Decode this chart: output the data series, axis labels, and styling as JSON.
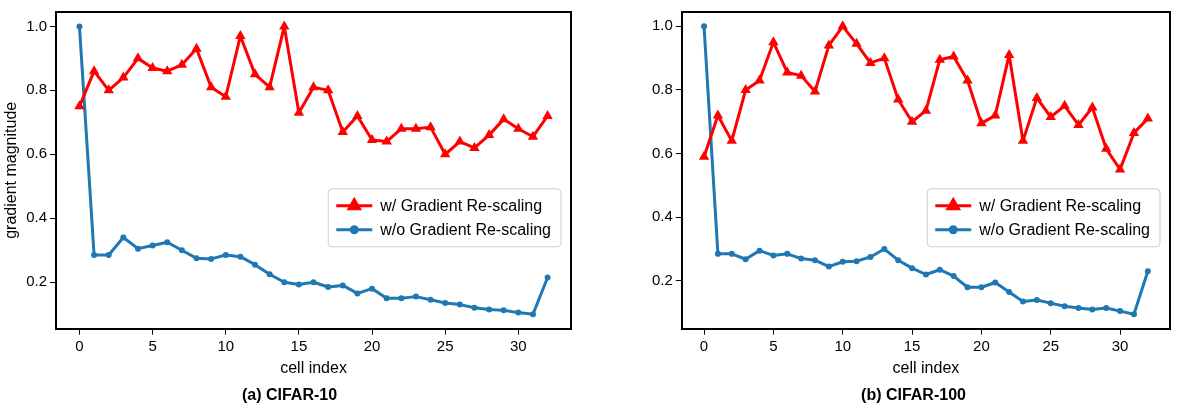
{
  "chart_data": [
    {
      "type": "line",
      "title": "(a) CIFAR-10",
      "xlabel": "cell index",
      "ylabel": "gradient magnitude",
      "x": [
        0,
        1,
        2,
        3,
        4,
        5,
        6,
        7,
        8,
        9,
        10,
        11,
        12,
        13,
        14,
        15,
        16,
        17,
        18,
        19,
        20,
        21,
        22,
        23,
        24,
        25,
        26,
        27,
        28,
        29,
        30,
        31,
        32
      ],
      "xlim": [
        -1.6,
        33.6
      ],
      "xticks": [
        0,
        5,
        10,
        15,
        20,
        25,
        30
      ],
      "ylim": [
        0.055,
        1.045
      ],
      "yticks": [
        0.2,
        0.4,
        0.6,
        0.8,
        {
          "value": 1.0,
          "label": "1.0"
        }
      ],
      "grid": false,
      "legend": "center right",
      "line_style": "solid",
      "series": [
        {
          "name": "w/ Gradient Re-scaling",
          "color": "#ff0000",
          "marker": "triangle",
          "values": [
            0.75,
            0.86,
            0.8,
            0.84,
            0.9,
            0.87,
            0.86,
            0.88,
            0.93,
            0.81,
            0.78,
            0.97,
            0.85,
            0.81,
            1.0,
            0.73,
            0.81,
            0.8,
            0.67,
            0.72,
            0.645,
            0.64,
            0.68,
            0.68,
            0.685,
            0.6,
            0.64,
            0.62,
            0.66,
            0.71,
            0.68,
            0.655,
            0.72
          ]
        },
        {
          "name": "w/o Gradient Re-scaling",
          "color": "#1f77b4",
          "marker": "circle",
          "values": [
            1.0,
            0.285,
            0.285,
            0.34,
            0.305,
            0.315,
            0.325,
            0.3,
            0.275,
            0.273,
            0.285,
            0.28,
            0.255,
            0.225,
            0.2,
            0.193,
            0.2,
            0.185,
            0.19,
            0.165,
            0.18,
            0.15,
            0.15,
            0.155,
            0.145,
            0.135,
            0.13,
            0.12,
            0.115,
            0.112,
            0.105,
            0.1,
            0.215
          ]
        }
      ]
    },
    {
      "type": "line",
      "title": "(b) CIFAR-100",
      "xlabel": "cell index",
      "x": [
        0,
        1,
        2,
        3,
        4,
        5,
        6,
        7,
        8,
        9,
        10,
        11,
        12,
        13,
        14,
        15,
        16,
        17,
        18,
        19,
        20,
        21,
        22,
        23,
        24,
        25,
        26,
        27,
        28,
        29,
        30,
        31,
        32
      ],
      "xlim": [
        -1.6,
        33.6
      ],
      "xticks": [
        0,
        5,
        10,
        15,
        20,
        25,
        30
      ],
      "ylim": [
        0.05,
        1.045
      ],
      "yticks": [
        0.2,
        0.4,
        0.6,
        0.8,
        {
          "value": 1.0,
          "label": "1.0"
        }
      ],
      "grid": false,
      "legend": "center right",
      "line_style": "solid",
      "series": [
        {
          "name": "w/ Gradient Re-scaling",
          "color": "#ff0000",
          "marker": "triangle",
          "values": [
            0.59,
            0.72,
            0.64,
            0.8,
            0.83,
            0.95,
            0.855,
            0.845,
            0.795,
            0.94,
            1.0,
            0.945,
            0.885,
            0.9,
            0.77,
            0.7,
            0.735,
            0.895,
            0.905,
            0.83,
            0.695,
            0.72,
            0.91,
            0.64,
            0.775,
            0.715,
            0.75,
            0.69,
            0.745,
            0.615,
            0.55,
            0.665,
            0.71
          ]
        },
        {
          "name": "w/o Gradient Re-scaling",
          "color": "#1f77b4",
          "marker": "circle",
          "values": [
            1.0,
            0.285,
            0.285,
            0.268,
            0.295,
            0.28,
            0.285,
            0.27,
            0.265,
            0.245,
            0.26,
            0.262,
            0.275,
            0.3,
            0.265,
            0.24,
            0.22,
            0.235,
            0.215,
            0.18,
            0.18,
            0.195,
            0.165,
            0.135,
            0.14,
            0.13,
            0.12,
            0.115,
            0.11,
            0.115,
            0.105,
            0.095,
            0.23
          ]
        }
      ]
    }
  ]
}
